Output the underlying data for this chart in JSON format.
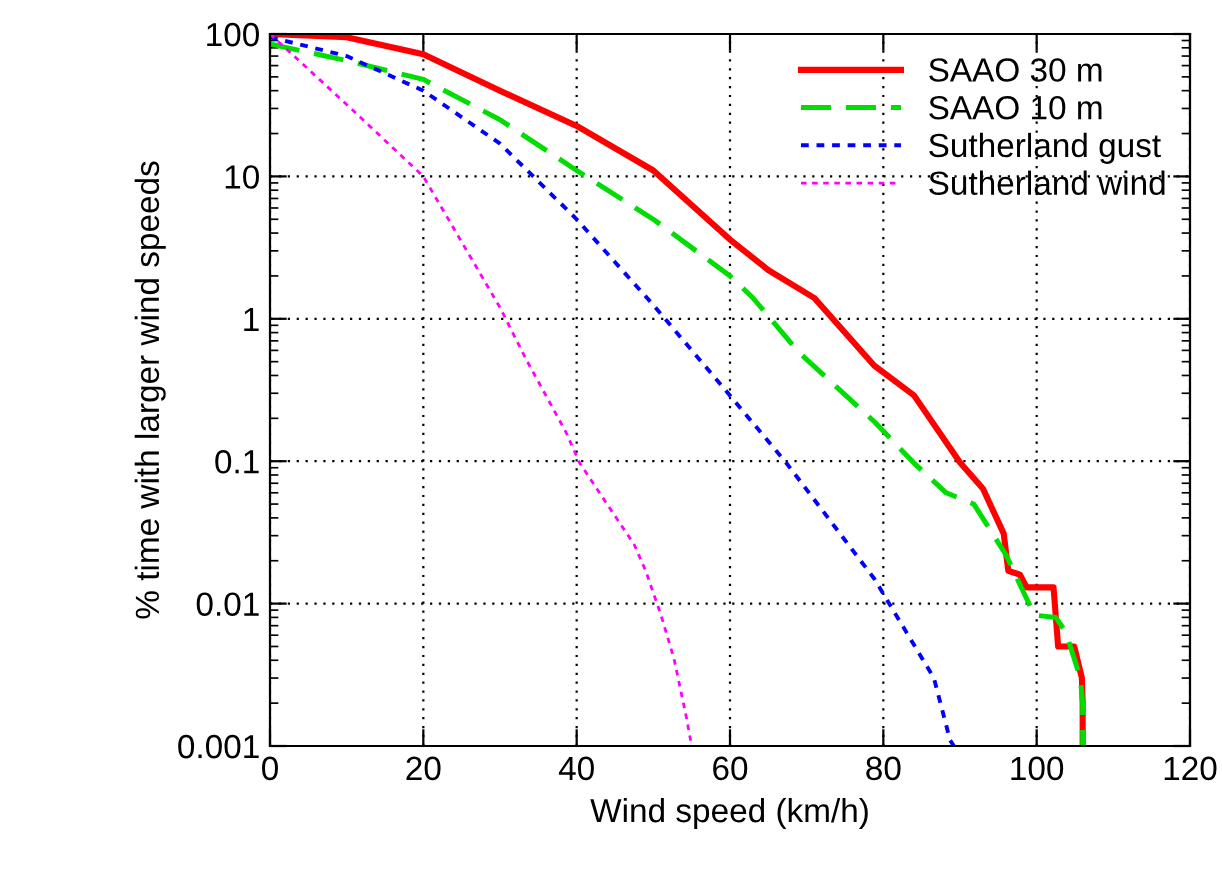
{
  "chart_data": {
    "type": "line",
    "xlabel": "Wind speed (km/h)",
    "ylabel": "% time with larger wind speeds",
    "log": "y",
    "grid": true,
    "legend": "top right",
    "xlim": [
      0,
      120
    ],
    "xticks": [
      0,
      20,
      40,
      60,
      80,
      100,
      120
    ],
    "ylim": [
      0.001,
      100
    ],
    "yticks": [
      {
        "value": 0.001,
        "label": "0.001"
      },
      {
        "value": 0.01,
        "label": "0.01"
      },
      {
        "value": 0.1,
        "label": "0.1"
      },
      {
        "value": 1,
        "label": "1"
      },
      {
        "value": 10,
        "label": "10"
      },
      {
        "value": 100,
        "label": "100"
      }
    ],
    "series": [
      {
        "name": "SAAO 30 m",
        "color": "#ff0000",
        "line_style": "solid",
        "x": [
          0,
          10,
          20,
          30,
          40,
          50,
          60,
          65,
          71,
          78.8,
          84,
          90,
          93,
          95.7,
          96.3,
          97.8,
          98.7,
          102.2,
          102.8,
          104.9,
          105.9,
          106,
          106
        ],
        "values": [
          100,
          95,
          72,
          40,
          22.6,
          11,
          3.6,
          2.2,
          1.4,
          0.47,
          0.29,
          0.098,
          0.064,
          0.031,
          0.017,
          0.016,
          0.013,
          0.013,
          0.005,
          0.005,
          0.003,
          0.002,
          0.001
        ]
      },
      {
        "name": "SAAO 10 m",
        "color": "#00dd00",
        "line_style": "dashed",
        "x": [
          0,
          10,
          20,
          30,
          40,
          50,
          60,
          63,
          69,
          78.8,
          84,
          88.2,
          91.8,
          96,
          99.7,
          102.5,
          103.8,
          105.7,
          106,
          106
        ],
        "values": [
          85,
          65,
          48,
          25,
          11,
          5,
          2,
          1.4,
          0.58,
          0.19,
          0.097,
          0.06,
          0.05,
          0.022,
          0.0083,
          0.008,
          0.0063,
          0.003,
          0.002,
          0.001
        ]
      },
      {
        "name": "Sutherland gust",
        "color": "#0000ff",
        "line_style": "dotted",
        "x": [
          0,
          10,
          20,
          30,
          40,
          50,
          58.7,
          67.3,
          78.8,
          86.6,
          88.7,
          89.2
        ],
        "values": [
          95,
          70,
          40,
          17,
          5,
          1.25,
          0.35,
          0.098,
          0.015,
          0.003,
          0.0011,
          0.001
        ]
      },
      {
        "name": "Sutherland wind",
        "color": "#ff00ff",
        "line_style": "dotted",
        "x": [
          0,
          10,
          20,
          30,
          33.4,
          38.6,
          40.4,
          44.9,
          47.5,
          49,
          51,
          52.7,
          54.3,
          55
        ],
        "values": [
          100,
          32,
          10,
          1.2,
          0.52,
          0.16,
          0.097,
          0.042,
          0.026,
          0.017,
          0.0083,
          0.0041,
          0.0016,
          0.001
        ]
      }
    ]
  }
}
